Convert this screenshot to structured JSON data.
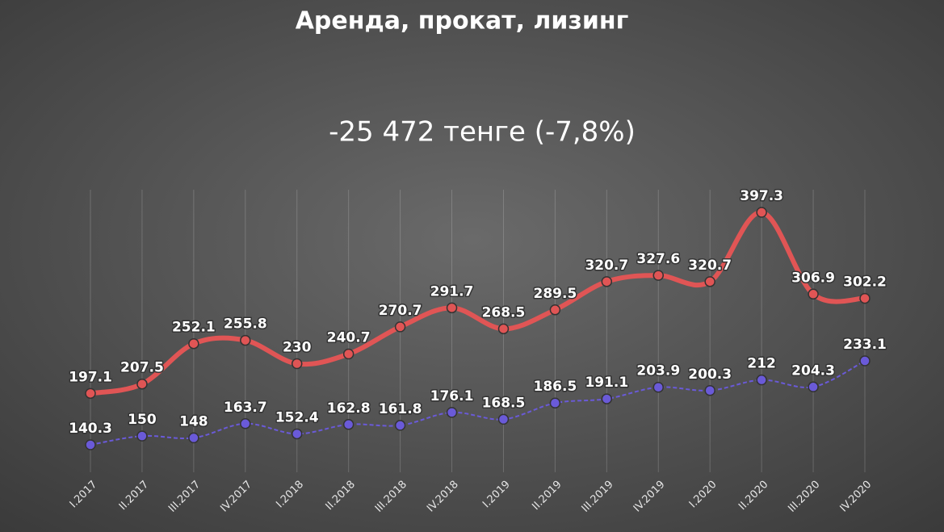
{
  "chart_data": {
    "type": "line",
    "title": "Аренда, прокат, лизинг",
    "subtitle": "-25 472 тенге (-7,8%)",
    "categories": [
      "I.2017",
      "II.2017",
      "III.2017",
      "IV.2017",
      "I.2018",
      "II.2018",
      "III.2018",
      "IV.2018",
      "I.2019",
      "II.2019",
      "III.2019",
      "IV.2019",
      "I.2020",
      "II.2020",
      "III.2020",
      "IV.2020"
    ],
    "series": [
      {
        "color": "#e05555",
        "values": [
          197.1,
          207.5,
          252.1,
          255.8,
          230,
          240.7,
          270.7,
          291.7,
          268.5,
          289.5,
          320.7,
          327.6,
          320.7,
          397.3,
          306.9,
          302.2
        ]
      },
      {
        "color": "#6a5ad8",
        "values": [
          140.3,
          150,
          148,
          163.7,
          152.4,
          162.8,
          161.8,
          176.1,
          168.5,
          186.5,
          191.1,
          203.9,
          200.3,
          212,
          204.3,
          233.1
        ]
      }
    ]
  }
}
